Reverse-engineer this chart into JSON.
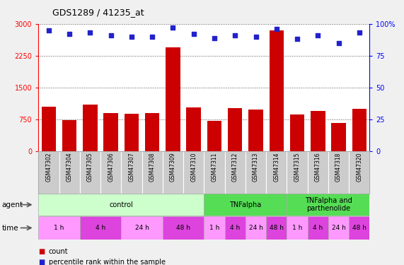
{
  "title": "GDS1289 / 41235_at",
  "samples": [
    "GSM47302",
    "GSM47304",
    "GSM47305",
    "GSM47306",
    "GSM47307",
    "GSM47308",
    "GSM47309",
    "GSM47310",
    "GSM47311",
    "GSM47312",
    "GSM47313",
    "GSM47314",
    "GSM47315",
    "GSM47316",
    "GSM47318",
    "GSM47320"
  ],
  "counts": [
    1050,
    730,
    1100,
    900,
    880,
    890,
    2450,
    1030,
    720,
    1010,
    980,
    2850,
    860,
    940,
    660,
    1000
  ],
  "percentiles": [
    95,
    92,
    93,
    91,
    90,
    90,
    97,
    92,
    89,
    91,
    90,
    96,
    88,
    91,
    85,
    93
  ],
  "ylim_left": [
    0,
    3000
  ],
  "ylim_right": [
    0,
    100
  ],
  "yticks_left": [
    0,
    750,
    1500,
    2250,
    3000
  ],
  "yticks_right": [
    0,
    25,
    50,
    75,
    100
  ],
  "bar_color": "#cc0000",
  "dot_color": "#2222cc",
  "bg_color": "#cccccc",
  "plot_bg": "#ffffff",
  "grid_color": "#555555",
  "agent_groups": [
    {
      "label": "control",
      "s": 0,
      "e": 7,
      "color": "#ccffcc"
    },
    {
      "label": "TNFalpha",
      "s": 8,
      "e": 11,
      "color": "#55dd55"
    },
    {
      "label": "TNFalpha and\nparthenolide",
      "s": 12,
      "e": 15,
      "color": "#55dd55"
    }
  ],
  "time_defs": [
    {
      "label": "1 h",
      "s": 0,
      "e": 2,
      "color": "#ff99ff"
    },
    {
      "label": "4 h",
      "s": 2,
      "e": 4,
      "color": "#dd44dd"
    },
    {
      "label": "24 h",
      "s": 4,
      "e": 6,
      "color": "#ff99ff"
    },
    {
      "label": "48 h",
      "s": 6,
      "e": 8,
      "color": "#dd44dd"
    },
    {
      "label": "1 h",
      "s": 8,
      "e": 9,
      "color": "#ff99ff"
    },
    {
      "label": "4 h",
      "s": 9,
      "e": 10,
      "color": "#dd44dd"
    },
    {
      "label": "24 h",
      "s": 10,
      "e": 11,
      "color": "#ff99ff"
    },
    {
      "label": "48 h",
      "s": 11,
      "e": 12,
      "color": "#dd44dd"
    },
    {
      "label": "1 h",
      "s": 12,
      "e": 13,
      "color": "#ff99ff"
    },
    {
      "label": "4 h",
      "s": 13,
      "e": 14,
      "color": "#dd44dd"
    },
    {
      "label": "24 h",
      "s": 14,
      "e": 15,
      "color": "#ff99ff"
    },
    {
      "label": "48 h",
      "s": 15,
      "e": 16,
      "color": "#dd44dd"
    }
  ]
}
